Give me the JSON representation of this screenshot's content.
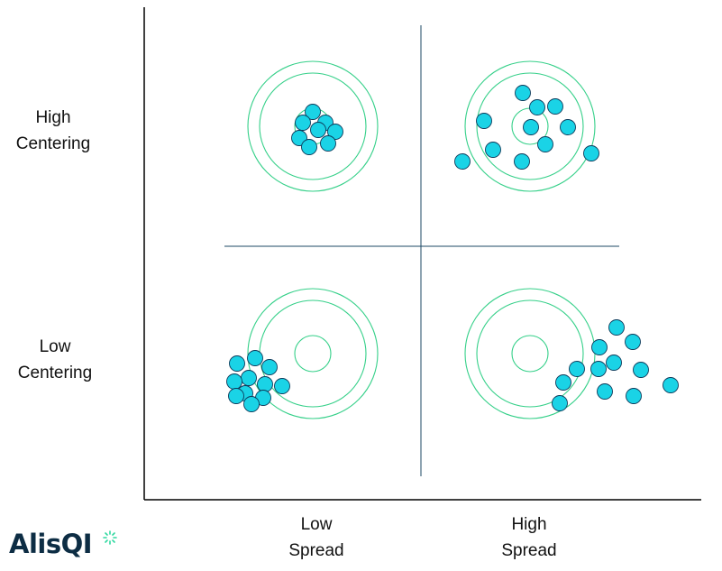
{
  "labels": {
    "y_top": [
      "High",
      "Centering"
    ],
    "y_bottom": [
      "Low",
      "Centering"
    ],
    "x_left": [
      "Low",
      "Spread"
    ],
    "x_right": [
      "High",
      "Spread"
    ]
  },
  "logo": {
    "text": "AlisQI"
  },
  "colors": {
    "dot_fill": "#1ad3e6",
    "dot_stroke": "#0c3a5a",
    "ring": "#35d089",
    "axis": "#000000",
    "divider": "#1e4a66",
    "logo_text": "#0d2d44",
    "logo_spark": "#2fd8a0"
  },
  "quadrants": [
    {
      "id": "high-centering-low-spread",
      "centering": "High",
      "spread": "Low"
    },
    {
      "id": "high-centering-high-spread",
      "centering": "High",
      "spread": "High"
    },
    {
      "id": "low-centering-low-spread",
      "centering": "Low",
      "spread": "Low"
    },
    {
      "id": "low-centering-high-spread",
      "centering": "Low",
      "spread": "High"
    }
  ]
}
